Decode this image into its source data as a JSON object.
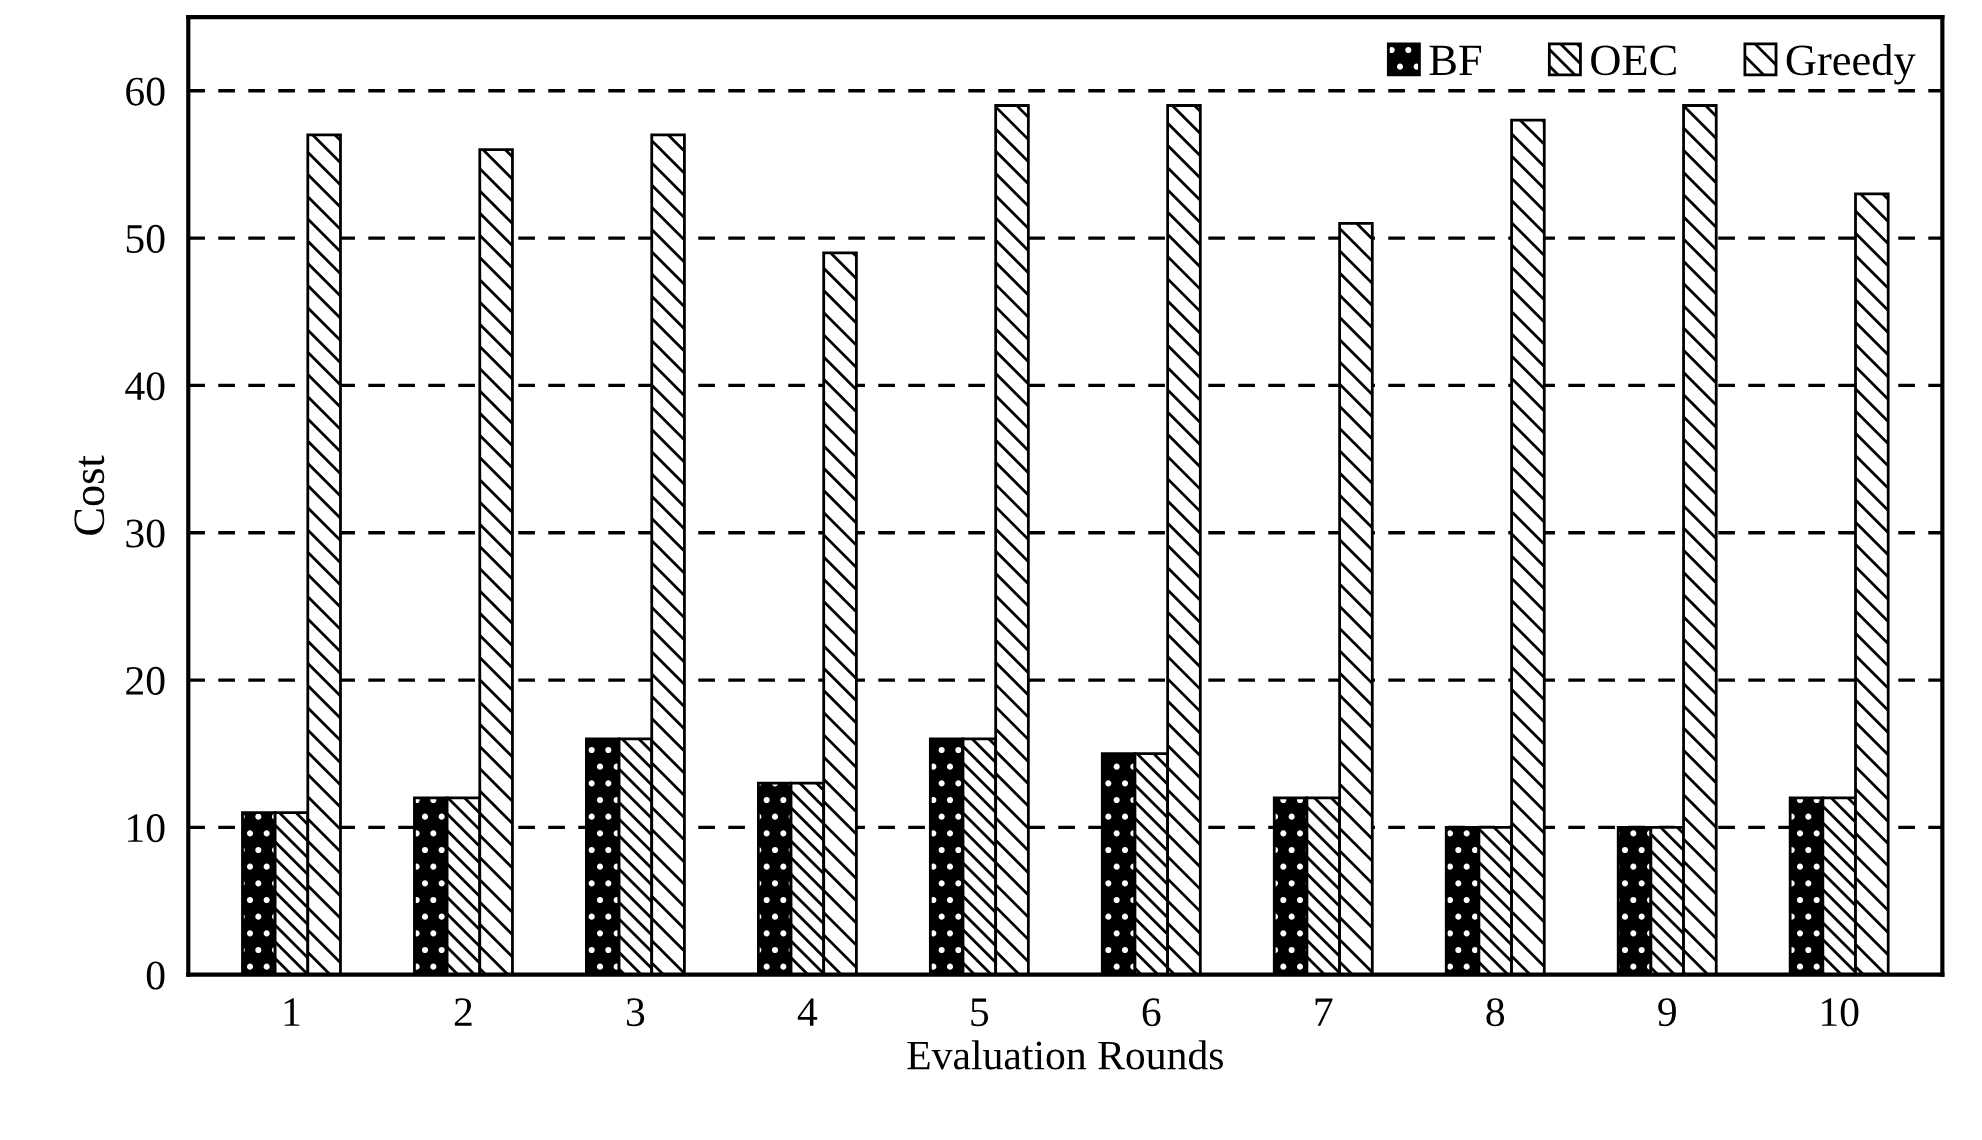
{
  "chart_data": {
    "type": "bar",
    "xlabel": "Evaluation Rounds",
    "ylabel": "Cost",
    "categories": [
      "1",
      "2",
      "3",
      "4",
      "5",
      "6",
      "7",
      "8",
      "9",
      "10"
    ],
    "series": [
      {
        "name": "BF",
        "color": "#000000",
        "values": [
          11,
          12,
          16,
          13,
          16,
          15,
          12,
          10,
          10,
          12
        ]
      },
      {
        "name": "OEC",
        "color": "#000000",
        "values": [
          11,
          12,
          16,
          13,
          16,
          15,
          12,
          10,
          10,
          12
        ]
      },
      {
        "name": "Greedy",
        "color": "#000000",
        "values": [
          57,
          56,
          57,
          49,
          59,
          59,
          51,
          58,
          59,
          53
        ]
      }
    ],
    "ylim": [
      0,
      65
    ],
    "yticks": [
      0,
      10,
      20,
      30,
      40,
      50,
      60
    ],
    "grid": "y",
    "legend": "top right"
  }
}
